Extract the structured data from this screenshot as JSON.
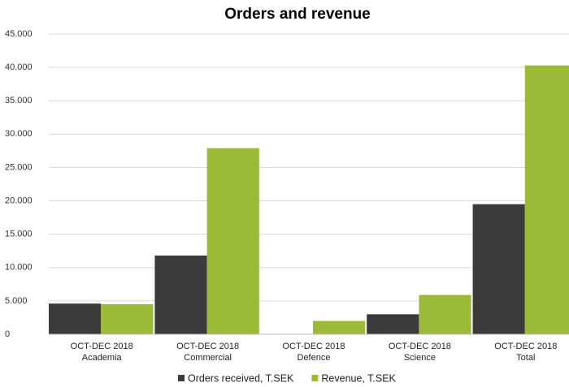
{
  "chart_data": {
    "type": "bar",
    "title": "Orders and revenue",
    "categories": [
      [
        "OCT-DEC 2018",
        "Academia"
      ],
      [
        "OCT-DEC 2018",
        "Commercial"
      ],
      [
        "OCT-DEC 2018",
        "Defence"
      ],
      [
        "OCT-DEC 2018",
        "Science"
      ],
      [
        "OCT-DEC 2018",
        "Total"
      ]
    ],
    "series": [
      {
        "name": "Orders received, T.SEK",
        "color": "#3b3b3b",
        "values": [
          4600,
          11800,
          0,
          3000,
          19500
        ]
      },
      {
        "name": "Revenue, T.SEK",
        "color": "#9bbb38",
        "values": [
          4500,
          27900,
          2000,
          5900,
          40300
        ]
      }
    ],
    "ylim": [
      0,
      45000
    ],
    "yticks": [
      0,
      {
        "value": 5000,
        "label": "5.000"
      },
      {
        "value": 10000,
        "label": "10.000"
      },
      {
        "value": 15000,
        "label": "15.000"
      },
      {
        "value": 20000,
        "label": "20.000"
      },
      {
        "value": 25000,
        "label": "25.000"
      },
      {
        "value": 30000,
        "label": "30.000"
      },
      {
        "value": 35000,
        "label": "35.000"
      },
      {
        "value": 40000,
        "label": "40.000"
      },
      {
        "value": 45000,
        "label": "45.000"
      }
    ],
    "grid": true,
    "legend": "bottom"
  }
}
